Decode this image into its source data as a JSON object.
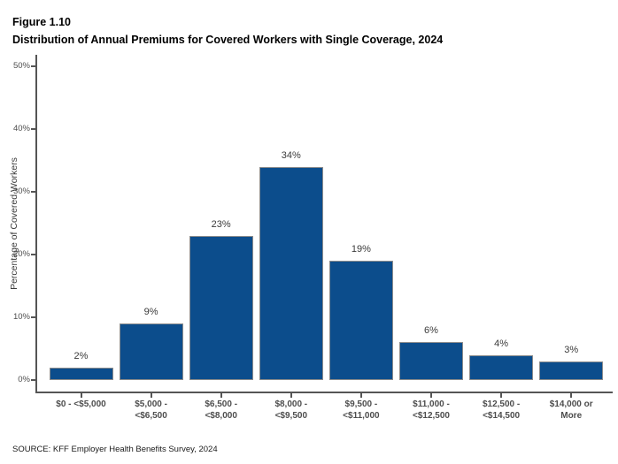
{
  "header": {
    "figure_label": "Figure 1.10",
    "title": "Distribution of Annual Premiums for Covered Workers with Single Coverage, 2024"
  },
  "chart_data": {
    "type": "bar",
    "title": "Distribution of Annual Premiums for Covered Workers with Single Coverage, 2024",
    "categories": [
      "$0 - <$5,000",
      "$5,000 -\n<$6,500",
      "$6,500 -\n<$8,000",
      "$8,000 -\n<$9,500",
      "$9,500 -\n<$11,000",
      "$11,000 -\n<$12,500",
      "$12,500 -\n<$14,500",
      "$14,000 or\nMore"
    ],
    "values": [
      2,
      9,
      23,
      34,
      19,
      6,
      4,
      3
    ],
    "value_labels": [
      "2%",
      "9%",
      "23%",
      "34%",
      "19%",
      "6%",
      "4%",
      "3%"
    ],
    "xlabel": "",
    "ylabel": "Percentage of Covered Workers",
    "ylim": [
      0,
      50
    ],
    "yticks": [
      0,
      10,
      20,
      30,
      40,
      50
    ],
    "ytick_suffix": "%",
    "grid": false,
    "legend_position": "none",
    "colors": {
      "bar_fill": "#0c4d8c",
      "bar_border": "#8c8c8c",
      "axis": "#555555",
      "tick_label": "#4d4d4d",
      "value_label": "#3a3a3a"
    }
  },
  "footer": {
    "source": "SOURCE: KFF Employer Health Benefits Survey, 2024"
  }
}
